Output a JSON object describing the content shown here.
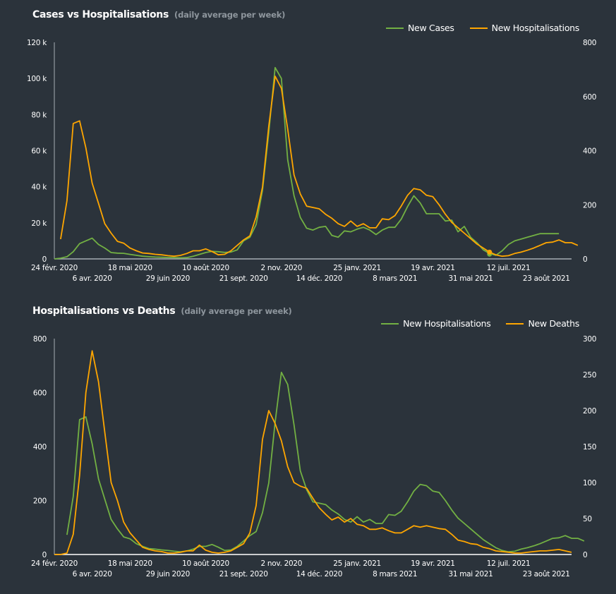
{
  "colors": {
    "background": "#2b333b",
    "green": "#72b043",
    "orange": "#ffa600",
    "axis": "#a6adb3"
  },
  "chart_data": [
    {
      "type": "line",
      "title": "Cases vs Hospitalisations",
      "subtitle": "(daily average per week)",
      "legend_position": "top-right",
      "x_tick_labels": [
        "24 févr. 2020",
        "6 avr. 2020",
        "18 mai 2020",
        "29 juin 2020",
        "10 août 2020",
        "21 sept. 2020",
        "2 nov. 2020",
        "14 déc. 2020",
        "25 janv. 2021",
        "8 mars 2021",
        "19 avr. 2021",
        "31 mai 2021",
        "12 juil. 2021",
        "23 août 2021"
      ],
      "x_tick_week_index": [
        0,
        6,
        12,
        18,
        24,
        30,
        36,
        42,
        48,
        54,
        60,
        66,
        72,
        78
      ],
      "y_left": {
        "label": "New Cases",
        "ylim": [
          0,
          120000
        ],
        "ticks": [
          "0",
          "20 k",
          "40 k",
          "60 k",
          "80 k",
          "100 k",
          "120 k"
        ],
        "tick_values": [
          0,
          20000,
          40000,
          60000,
          80000,
          100000,
          120000
        ]
      },
      "y_right": {
        "label": "New Hospitalisations",
        "ylim": [
          0,
          800
        ],
        "ticks": [
          "0",
          "200",
          "400",
          "600",
          "800"
        ],
        "tick_values": [
          0,
          200,
          400,
          600,
          800
        ]
      },
      "highlight_point": {
        "week_index": 69,
        "series": "New Hospitalisations"
      },
      "series": [
        {
          "name": "New Cases",
          "axis": "left",
          "color": "#72b043",
          "start_week": 0,
          "values": [
            0,
            400,
            1200,
            4000,
            8500,
            10000,
            11500,
            8000,
            6000,
            3500,
            3200,
            3100,
            2500,
            2000,
            1500,
            1200,
            1000,
            900,
            800,
            700,
            600,
            700,
            1500,
            2500,
            3500,
            4200,
            4000,
            3600,
            3800,
            5000,
            10000,
            12000,
            19000,
            38000,
            70000,
            106000,
            100000,
            55000,
            35000,
            23000,
            17000,
            16000,
            17500,
            18000,
            13000,
            12000,
            15500,
            15000,
            16500,
            17500,
            16000,
            13500,
            16000,
            17500,
            17500,
            22000,
            29000,
            35000,
            31000,
            25000,
            25000,
            25000,
            21000,
            21500,
            15000,
            18000,
            12000,
            9000,
            5000,
            3000,
            2000,
            4500,
            8000,
            10000,
            11000,
            12000,
            13000,
            14000,
            14000,
            14000,
            14000
          ]
        },
        {
          "name": "New Hospitalisations",
          "axis": "right",
          "color": "#ffa600",
          "start_week": 1,
          "values": [
            73,
            215,
            500,
            510,
            410,
            280,
            205,
            130,
            95,
            65,
            58,
            40,
            30,
            22,
            20,
            17,
            15,
            12,
            10,
            13,
            20,
            30,
            30,
            37,
            27,
            15,
            17,
            30,
            50,
            70,
            85,
            155,
            265,
            490,
            675,
            630,
            480,
            310,
            240,
            195,
            190,
            185,
            165,
            150,
            130,
            120,
            140,
            120,
            130,
            115,
            115,
            148,
            145,
            160,
            195,
            235,
            260,
            255,
            235,
            230,
            200,
            165,
            135,
            115,
            95,
            75,
            55,
            40,
            25,
            15,
            10,
            12,
            20,
            25,
            32,
            40,
            50,
            60,
            62,
            70,
            60,
            60,
            50
          ]
        }
      ]
    },
    {
      "type": "line",
      "title": "Hospitalisations vs Deaths",
      "subtitle": "(daily average per week)",
      "legend_position": "top-right",
      "x_tick_labels": [
        "24 févr. 2020",
        "6 avr. 2020",
        "18 mai 2020",
        "29 juin 2020",
        "10 août 2020",
        "21 sept. 2020",
        "2 nov. 2020",
        "14 déc. 2020",
        "25 janv. 2021",
        "8 mars 2021",
        "19 avr. 2021",
        "31 mai 2021",
        "12 juil. 2021",
        "23 août 2021"
      ],
      "x_tick_week_index": [
        0,
        6,
        12,
        18,
        24,
        30,
        36,
        42,
        48,
        54,
        60,
        66,
        72,
        78
      ],
      "y_left": {
        "label": "New Hospitalisations",
        "ylim": [
          0,
          800
        ],
        "ticks": [
          "0",
          "200",
          "400",
          "600",
          "800"
        ],
        "tick_values": [
          0,
          200,
          400,
          600,
          800
        ]
      },
      "y_right": {
        "label": "New Deaths",
        "ylim": [
          0,
          300
        ],
        "ticks": [
          "0",
          "50",
          "100",
          "150",
          "200",
          "250",
          "300"
        ],
        "tick_values": [
          0,
          50,
          100,
          150,
          200,
          250,
          300
        ]
      },
      "series": [
        {
          "name": "New Hospitalisations",
          "axis": "left",
          "color": "#72b043",
          "start_week": 2,
          "values": [
            73,
            215,
            500,
            510,
            410,
            280,
            205,
            130,
            95,
            65,
            58,
            40,
            30,
            22,
            20,
            17,
            15,
            12,
            10,
            13,
            20,
            30,
            30,
            37,
            27,
            15,
            17,
            30,
            50,
            70,
            85,
            155,
            265,
            490,
            675,
            630,
            480,
            310,
            240,
            195,
            190,
            185,
            165,
            150,
            130,
            120,
            140,
            120,
            130,
            115,
            115,
            148,
            145,
            160,
            195,
            235,
            260,
            255,
            235,
            230,
            200,
            165,
            135,
            115,
            95,
            75,
            55,
            40,
            25,
            15,
            10,
            12,
            20,
            25,
            32,
            40,
            50,
            60,
            62,
            70,
            60,
            60,
            50
          ]
        },
        {
          "name": "New Deaths",
          "axis": "right",
          "color": "#ffa600",
          "start_week": 0,
          "values": [
            0,
            0,
            2,
            28,
            110,
            225,
            283,
            240,
            170,
            100,
            75,
            45,
            30,
            20,
            10,
            7,
            5,
            4,
            2,
            2,
            3,
            5,
            5,
            13,
            6,
            3,
            2,
            3,
            5,
            10,
            15,
            30,
            68,
            160,
            200,
            182,
            158,
            122,
            100,
            95,
            92,
            78,
            65,
            56,
            48,
            52,
            45,
            50,
            42,
            40,
            35,
            35,
            37,
            33,
            30,
            30,
            35,
            40,
            38,
            40,
            38,
            36,
            35,
            28,
            20,
            18,
            15,
            14,
            10,
            8,
            5,
            4,
            3,
            2,
            2,
            3,
            4,
            5,
            5,
            6,
            7,
            5,
            3
          ]
        }
      ]
    }
  ]
}
